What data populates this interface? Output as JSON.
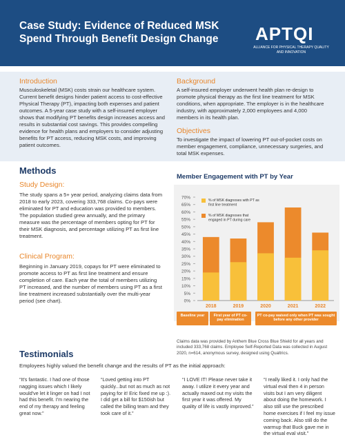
{
  "header": {
    "title": "Case Study: Evidence of Reduced MSK Spend Through Benefit Design Change",
    "logo": "APTQI",
    "logo_tagline": "ALLIANCE FOR PHYSICAL THERAPY QUALITY AND INNOVATION"
  },
  "introduction": {
    "heading": "Introduction",
    "text": "Musculoskeletal (MSK) costs strain our healthcare system. Current benefit designs hinder patient access to cost-effective Physical Therapy (PT), impacting both expenses and patient outcomes. A 5-year case study with a self-insured employer shows that modifying PT benefits design increases access and results in substantial cost savings. This provides compelling evidence for health plans and employers to consider adjusting benefits for PT access, reducing MSK costs, and improving patient outcomes."
  },
  "background": {
    "heading": "Background",
    "text": "A self-insured employer underwent health plan re-design to promote physical therapy as the first line treatment for MSK conditions, when appropriate. The employer is in the healthcare industry, with approximately 2,000 employees and 4,000 members in its health plan."
  },
  "objectives": {
    "heading": "Objectives",
    "text": "To investigate the impact of lowering PT out-of-pocket costs on member engagement, compliance, unnecessary surgeries, and total MSK expenses."
  },
  "methods": {
    "heading": "Methods",
    "study_design": {
      "heading": "Study Design:",
      "text": "The study spans a 5+ year period, analyzing claims data from 2018 to early 2023, covering 333,768 claims. Co-pays were eliminated for PT and education was provided to members.  The population studied grew annually, and the primary measure was the percentage of members opting for PT for their MSK diagnosis, and percentage utilizing PT as first line treatment."
    },
    "clinical_program": {
      "heading": "Clinical Program:",
      "text": "Beginning in January 2019, copays for PT were eliminated to promote access to PT as first line treatment and ensure completion of care. Each year the total of members utilizing PT increased, and the number of members using PT as a first line treatment increased substantially over the multi-year period (see chart)."
    }
  },
  "chart_data": {
    "type": "bar",
    "title": "Member Engagement with PT by Year",
    "categories": [
      "2018",
      "2019",
      "2020",
      "2021",
      "2022"
    ],
    "series": [
      {
        "name": "% of MSK diagnoses with PT as first line treatment",
        "color": "#f8c03a",
        "values": [
          19,
          26,
          32,
          29,
          34
        ]
      },
      {
        "name": "% of MSK diagnoses that engaged in PT during care",
        "color": "#ec8a2c",
        "values": [
          43,
          42,
          53,
          63,
          46
        ]
      }
    ],
    "ylim": [
      0,
      70
    ],
    "yticks": [
      {
        "value": 0,
        "label": "0%"
      },
      {
        "value": 5,
        "label": "5%"
      },
      {
        "value": 10,
        "label": "10%"
      },
      {
        "value": 15,
        "label": "15%"
      },
      {
        "value": 20,
        "label": "20%"
      },
      {
        "value": 25,
        "label": "25%"
      },
      {
        "value": 30,
        "label": "30%"
      },
      {
        "value": 35,
        "label": "35%"
      },
      {
        "value": 40,
        "label": "40%"
      },
      {
        "value": 45,
        "label": "45%"
      },
      {
        "value": 50,
        "label": "50%"
      },
      {
        "value": 55,
        "label": "55%"
      },
      {
        "value": 60,
        "label": "60%"
      },
      {
        "value": 65,
        "label": "65%"
      },
      {
        "value": 70,
        "label": "70%"
      }
    ],
    "grid": false,
    "legend": "top-left",
    "annotations": [
      "Baseline year",
      "First year of PT co-pay elimination",
      "PT co-pay waived only when PT was sought before any other provider"
    ]
  },
  "chart_caption": "Claims data was provided by Anthem Blue Cross Blue Shield for all years and included 333,768 claims. Employee Self-Reported Data was collected in August 2020, n=614, anonymous survey, designed using Qualtrics.",
  "testimonials": {
    "heading": "Testimonials",
    "intro": "Employees highly valued the benefit change and the results of PT as the initial approach:",
    "quotes": [
      "“It's fantastic. I had one of those nagging issues which I likely would've let it linger on had I not had this benefit. I'm nearing the end of my therapy and feeling great now.”",
      "“Loved getting into PT quickly...but not as much as not paying for it! Eric fixed me up :). I did get a bill for $150ish but called the billing team and they took care of it.”",
      "“I LOVE IT! Please never take it away. I utilize it every year and actually maxed out my visits the first year it was offered. My quality of life is vastly improved.”",
      "“I really liked it. I only had the virtual eval then 4 in person visits but I am very diligent about doing the homework. I also still use the prescribed home exercises if I feel my issue coming back. Also still do the warmup that Buck gave me in the virtual eval visit.”"
    ]
  }
}
